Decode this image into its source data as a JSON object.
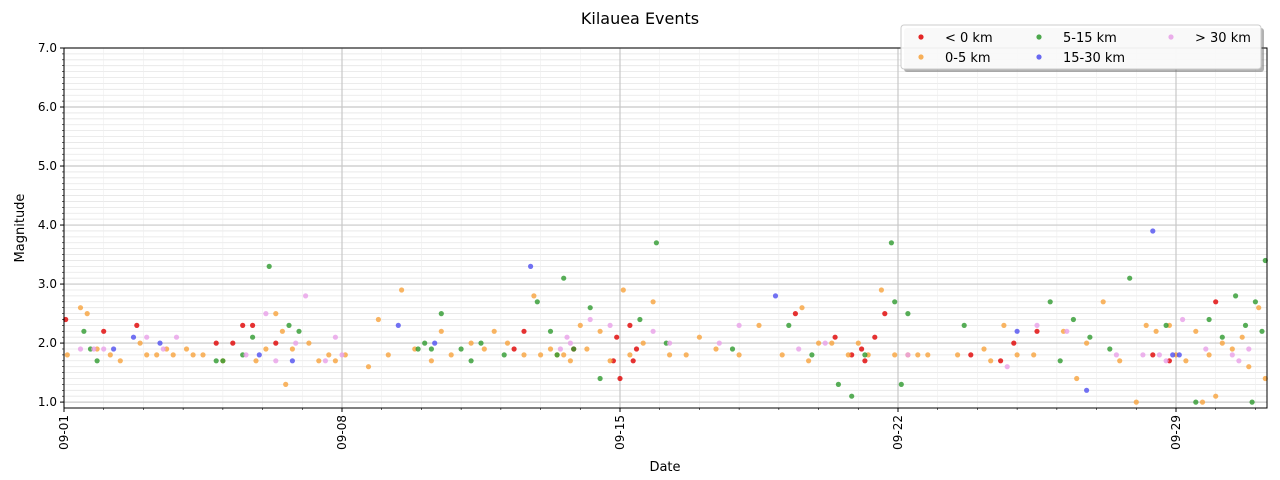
{
  "chart_data": {
    "type": "scatter",
    "title": "Kilauea Events",
    "xlabel": "Date",
    "ylabel": "Magnitude",
    "xlim": [
      "2024-09-01",
      "2024-10-01 07:00"
    ],
    "ylim": [
      0.9,
      7.0
    ],
    "y_ticks": [
      1.0,
      2.0,
      3.0,
      4.0,
      5.0,
      6.0,
      7.0
    ],
    "y_tick_labels": [
      "1.0",
      "2.0",
      "3.0",
      "4.0",
      "5.0",
      "6.0",
      "7.0"
    ],
    "x_ticks": [
      "2024-09-01",
      "2024-09-08",
      "2024-09-15",
      "2024-09-22",
      "2024-09-29"
    ],
    "x_tick_labels": [
      "09-01",
      "09-08",
      "09-15",
      "09-22",
      "09-29"
    ],
    "grid": true,
    "legend_position": "top-right",
    "series": [
      {
        "name": "< 0 km",
        "color": "#e00000",
        "points": [
          [
            "2024-09-01 01:00",
            2.4
          ],
          [
            "2024-09-02 00:00",
            2.2
          ],
          [
            "2024-09-02 20:00",
            2.3
          ],
          [
            "2024-09-04 20:00",
            2.0
          ],
          [
            "2024-09-05 06:00",
            2.0
          ],
          [
            "2024-09-05 12:00",
            2.3
          ],
          [
            "2024-09-05 18:00",
            2.3
          ],
          [
            "2024-09-06 08:00",
            2.0
          ],
          [
            "2024-09-12 08:00",
            1.9
          ],
          [
            "2024-09-12 14:00",
            2.2
          ],
          [
            "2024-09-13 20:00",
            1.9
          ],
          [
            "2024-09-14 20:00",
            1.7
          ],
          [
            "2024-09-14 22:00",
            2.1
          ],
          [
            "2024-09-15 00:00",
            1.4
          ],
          [
            "2024-09-15 06:00",
            2.3
          ],
          [
            "2024-09-15 08:00",
            1.7
          ],
          [
            "2024-09-15 10:00",
            1.9
          ],
          [
            "2024-09-19 10:00",
            2.5
          ],
          [
            "2024-09-20 10:00",
            2.1
          ],
          [
            "2024-09-20 20:00",
            1.8
          ],
          [
            "2024-09-21 02:00",
            1.9
          ],
          [
            "2024-09-21 04:00",
            1.7
          ],
          [
            "2024-09-21 10:00",
            2.1
          ],
          [
            "2024-09-21 16:00",
            2.5
          ],
          [
            "2024-09-23 20:00",
            1.8
          ],
          [
            "2024-09-24 14:00",
            1.7
          ],
          [
            "2024-09-24 22:00",
            2.0
          ],
          [
            "2024-09-25 12:00",
            2.2
          ],
          [
            "2024-09-28 10:00",
            1.8
          ],
          [
            "2024-09-28 20:00",
            1.7
          ],
          [
            "2024-09-30 00:00",
            2.7
          ]
        ]
      },
      {
        "name": "0-5 km",
        "color": "#f7a23c",
        "points": [
          [
            "2024-09-01 02:00",
            1.8
          ],
          [
            "2024-09-01 10:00",
            2.6
          ],
          [
            "2024-09-01 14:00",
            2.5
          ],
          [
            "2024-09-01 20:00",
            1.9
          ],
          [
            "2024-09-02 04:00",
            1.8
          ],
          [
            "2024-09-02 10:00",
            1.7
          ],
          [
            "2024-09-02 22:00",
            2.0
          ],
          [
            "2024-09-03 02:00",
            1.8
          ],
          [
            "2024-09-03 08:00",
            1.8
          ],
          [
            "2024-09-03 14:00",
            1.9
          ],
          [
            "2024-09-03 18:00",
            1.8
          ],
          [
            "2024-09-04 02:00",
            1.9
          ],
          [
            "2024-09-04 06:00",
            1.8
          ],
          [
            "2024-09-04 12:00",
            1.8
          ],
          [
            "2024-09-05 00:00",
            1.7
          ],
          [
            "2024-09-05 20:00",
            1.7
          ],
          [
            "2024-09-06 02:00",
            1.9
          ],
          [
            "2024-09-06 08:00",
            2.5
          ],
          [
            "2024-09-06 12:00",
            2.2
          ],
          [
            "2024-09-06 14:00",
            1.3
          ],
          [
            "2024-09-06 18:00",
            1.9
          ],
          [
            "2024-09-07 04:00",
            2.0
          ],
          [
            "2024-09-07 10:00",
            1.7
          ],
          [
            "2024-09-07 16:00",
            1.8
          ],
          [
            "2024-09-07 20:00",
            1.7
          ],
          [
            "2024-09-08 02:00",
            1.8
          ],
          [
            "2024-09-08 16:00",
            1.6
          ],
          [
            "2024-09-08 22:00",
            2.4
          ],
          [
            "2024-09-09 04:00",
            1.8
          ],
          [
            "2024-09-09 12:00",
            2.9
          ],
          [
            "2024-09-09 20:00",
            1.9
          ],
          [
            "2024-09-10 06:00",
            1.7
          ],
          [
            "2024-09-10 12:00",
            2.2
          ],
          [
            "2024-09-10 18:00",
            1.8
          ],
          [
            "2024-09-11 06:00",
            2.0
          ],
          [
            "2024-09-11 14:00",
            1.9
          ],
          [
            "2024-09-11 20:00",
            2.2
          ],
          [
            "2024-09-12 04:00",
            2.0
          ],
          [
            "2024-09-12 14:00",
            1.8
          ],
          [
            "2024-09-12 20:00",
            2.8
          ],
          [
            "2024-09-13 00:00",
            1.8
          ],
          [
            "2024-09-13 06:00",
            1.9
          ],
          [
            "2024-09-13 10:00",
            1.8
          ],
          [
            "2024-09-13 14:00",
            1.8
          ],
          [
            "2024-09-13 18:00",
            1.7
          ],
          [
            "2024-09-14 00:00",
            2.3
          ],
          [
            "2024-09-14 04:00",
            1.9
          ],
          [
            "2024-09-14 12:00",
            2.2
          ],
          [
            "2024-09-14 18:00",
            1.7
          ],
          [
            "2024-09-15 02:00",
            2.9
          ],
          [
            "2024-09-15 06:00",
            1.8
          ],
          [
            "2024-09-15 14:00",
            2.0
          ],
          [
            "2024-09-15 20:00",
            2.7
          ],
          [
            "2024-09-16 06:00",
            1.8
          ],
          [
            "2024-09-16 16:00",
            1.8
          ],
          [
            "2024-09-17 00:00",
            2.1
          ],
          [
            "2024-09-17 10:00",
            1.9
          ],
          [
            "2024-09-18 00:00",
            1.8
          ],
          [
            "2024-09-18 12:00",
            2.3
          ],
          [
            "2024-09-19 02:00",
            1.8
          ],
          [
            "2024-09-19 14:00",
            2.6
          ],
          [
            "2024-09-19 18:00",
            1.7
          ],
          [
            "2024-09-20 00:00",
            2.0
          ],
          [
            "2024-09-20 08:00",
            2.0
          ],
          [
            "2024-09-20 18:00",
            1.8
          ],
          [
            "2024-09-21 00:00",
            2.0
          ],
          [
            "2024-09-21 06:00",
            1.8
          ],
          [
            "2024-09-21 14:00",
            2.9
          ],
          [
            "2024-09-21 22:00",
            1.8
          ],
          [
            "2024-09-22 06:00",
            1.8
          ],
          [
            "2024-09-22 12:00",
            1.8
          ],
          [
            "2024-09-22 18:00",
            1.8
          ],
          [
            "2024-09-23 12:00",
            1.8
          ],
          [
            "2024-09-24 04:00",
            1.9
          ],
          [
            "2024-09-24 08:00",
            1.7
          ],
          [
            "2024-09-24 16:00",
            2.3
          ],
          [
            "2024-09-25 00:00",
            1.8
          ],
          [
            "2024-09-25 10:00",
            1.8
          ],
          [
            "2024-09-26 04:00",
            2.2
          ],
          [
            "2024-09-26 12:00",
            1.4
          ],
          [
            "2024-09-26 18:00",
            2.0
          ],
          [
            "2024-09-27 04:00",
            2.7
          ],
          [
            "2024-09-27 14:00",
            1.7
          ],
          [
            "2024-09-28 00:00",
            1.0
          ],
          [
            "2024-09-28 06:00",
            2.3
          ],
          [
            "2024-09-28 12:00",
            2.2
          ],
          [
            "2024-09-28 20:00",
            2.3
          ],
          [
            "2024-09-29 00:00",
            1.8
          ],
          [
            "2024-09-29 06:00",
            1.7
          ],
          [
            "2024-09-29 12:00",
            2.2
          ],
          [
            "2024-09-29 16:00",
            1.0
          ],
          [
            "2024-09-29 20:00",
            1.8
          ],
          [
            "2024-09-30 00:00",
            1.1
          ],
          [
            "2024-09-30 04:00",
            2.0
          ],
          [
            "2024-09-30 10:00",
            1.9
          ],
          [
            "2024-09-30 16:00",
            2.1
          ],
          [
            "2024-09-30 20:00",
            1.6
          ],
          [
            "2024-10-01 02:00",
            2.6
          ],
          [
            "2024-10-01 06:00",
            1.4
          ]
        ]
      },
      {
        "name": "5-15 km",
        "color": "#2e9a2e",
        "points": [
          [
            "2024-09-01 12:00",
            2.2
          ],
          [
            "2024-09-01 16:00",
            1.9
          ],
          [
            "2024-09-01 20:00",
            1.7
          ],
          [
            "2024-09-04 20:00",
            1.7
          ],
          [
            "2024-09-05 00:00",
            1.7
          ],
          [
            "2024-09-05 12:00",
            1.8
          ],
          [
            "2024-09-05 18:00",
            2.1
          ],
          [
            "2024-09-06 04:00",
            3.3
          ],
          [
            "2024-09-06 16:00",
            2.3
          ],
          [
            "2024-09-06 22:00",
            2.2
          ],
          [
            "2024-09-09 22:00",
            1.9
          ],
          [
            "2024-09-10 02:00",
            2.0
          ],
          [
            "2024-09-10 06:00",
            1.9
          ],
          [
            "2024-09-10 12:00",
            2.5
          ],
          [
            "2024-09-11 00:00",
            1.9
          ],
          [
            "2024-09-11 06:00",
            1.7
          ],
          [
            "2024-09-11 12:00",
            2.0
          ],
          [
            "2024-09-12 02:00",
            1.8
          ],
          [
            "2024-09-12 22:00",
            2.7
          ],
          [
            "2024-09-13 06:00",
            2.2
          ],
          [
            "2024-09-13 10:00",
            1.8
          ],
          [
            "2024-09-13 14:00",
            3.1
          ],
          [
            "2024-09-13 20:00",
            1.9
          ],
          [
            "2024-09-14 06:00",
            2.6
          ],
          [
            "2024-09-14 12:00",
            1.4
          ],
          [
            "2024-09-15 12:00",
            2.4
          ],
          [
            "2024-09-15 22:00",
            3.7
          ],
          [
            "2024-09-16 04:00",
            2.0
          ],
          [
            "2024-09-17 20:00",
            1.9
          ],
          [
            "2024-09-19 06:00",
            2.3
          ],
          [
            "2024-09-19 20:00",
            1.8
          ],
          [
            "2024-09-20 12:00",
            1.3
          ],
          [
            "2024-09-20 20:00",
            1.1
          ],
          [
            "2024-09-21 04:00",
            1.8
          ],
          [
            "2024-09-21 20:00",
            3.7
          ],
          [
            "2024-09-21 22:00",
            2.7
          ],
          [
            "2024-09-22 02:00",
            1.3
          ],
          [
            "2024-09-22 06:00",
            2.5
          ],
          [
            "2024-09-23 16:00",
            2.3
          ],
          [
            "2024-09-25 20:00",
            2.7
          ],
          [
            "2024-09-26 02:00",
            1.7
          ],
          [
            "2024-09-26 10:00",
            2.4
          ],
          [
            "2024-09-26 20:00",
            2.1
          ],
          [
            "2024-09-27 08:00",
            1.9
          ],
          [
            "2024-09-27 20:00",
            3.1
          ],
          [
            "2024-09-28 18:00",
            2.3
          ],
          [
            "2024-09-29 12:00",
            1.0
          ],
          [
            "2024-09-29 20:00",
            2.4
          ],
          [
            "2024-09-30 04:00",
            2.1
          ],
          [
            "2024-09-30 12:00",
            2.8
          ],
          [
            "2024-09-30 18:00",
            2.3
          ],
          [
            "2024-09-30 22:00",
            1.0
          ],
          [
            "2024-10-01 00:00",
            2.7
          ],
          [
            "2024-10-01 04:00",
            2.2
          ],
          [
            "2024-10-01 06:00",
            3.4
          ]
        ]
      },
      {
        "name": "15-30 km",
        "color": "#4f4ff0",
        "points": [
          [
            "2024-09-02 06:00",
            1.9
          ],
          [
            "2024-09-02 18:00",
            2.1
          ],
          [
            "2024-09-03 10:00",
            2.0
          ],
          [
            "2024-09-05 22:00",
            1.8
          ],
          [
            "2024-09-06 18:00",
            1.7
          ],
          [
            "2024-09-09 10:00",
            2.3
          ],
          [
            "2024-09-10 08:00",
            2.0
          ],
          [
            "2024-09-12 18:00",
            3.3
          ],
          [
            "2024-09-18 22:00",
            2.8
          ],
          [
            "2024-09-25 00:00",
            2.2
          ],
          [
            "2024-09-26 18:00",
            1.2
          ],
          [
            "2024-09-28 10:00",
            3.9
          ],
          [
            "2024-09-28 22:00",
            1.8
          ],
          [
            "2024-09-29 02:00",
            1.8
          ]
        ]
      },
      {
        "name": "> 30 km",
        "color": "#e8a0e8",
        "points": [
          [
            "2024-09-01 10:00",
            1.9
          ],
          [
            "2024-09-01 18:00",
            1.9
          ],
          [
            "2024-09-02 00:00",
            1.9
          ],
          [
            "2024-09-03 02:00",
            2.1
          ],
          [
            "2024-09-03 12:00",
            1.9
          ],
          [
            "2024-09-03 20:00",
            2.1
          ],
          [
            "2024-09-05 14:00",
            1.8
          ],
          [
            "2024-09-06 02:00",
            2.5
          ],
          [
            "2024-09-06 08:00",
            1.7
          ],
          [
            "2024-09-06 20:00",
            2.0
          ],
          [
            "2024-09-07 02:00",
            2.8
          ],
          [
            "2024-09-07 14:00",
            1.7
          ],
          [
            "2024-09-07 20:00",
            2.1
          ],
          [
            "2024-09-08 00:00",
            1.8
          ],
          [
            "2024-09-13 12:00",
            1.9
          ],
          [
            "2024-09-13 16:00",
            2.1
          ],
          [
            "2024-09-13 18:00",
            2.0
          ],
          [
            "2024-09-14 06:00",
            2.4
          ],
          [
            "2024-09-14 18:00",
            2.3
          ],
          [
            "2024-09-15 20:00",
            2.2
          ],
          [
            "2024-09-16 06:00",
            2.0
          ],
          [
            "2024-09-17 12:00",
            2.0
          ],
          [
            "2024-09-18 00:00",
            2.3
          ],
          [
            "2024-09-19 12:00",
            1.9
          ],
          [
            "2024-09-20 04:00",
            2.0
          ],
          [
            "2024-09-22 06:00",
            1.8
          ],
          [
            "2024-09-24 18:00",
            1.6
          ],
          [
            "2024-09-25 12:00",
            2.3
          ],
          [
            "2024-09-26 06:00",
            2.2
          ],
          [
            "2024-09-27 12:00",
            1.8
          ],
          [
            "2024-09-28 04:00",
            1.8
          ],
          [
            "2024-09-28 14:00",
            1.8
          ],
          [
            "2024-09-28 18:00",
            1.7
          ],
          [
            "2024-09-29 04:00",
            2.4
          ],
          [
            "2024-09-29 18:00",
            1.9
          ],
          [
            "2024-09-30 10:00",
            1.8
          ],
          [
            "2024-09-30 14:00",
            1.7
          ],
          [
            "2024-09-30 20:00",
            1.9
          ]
        ]
      }
    ]
  }
}
